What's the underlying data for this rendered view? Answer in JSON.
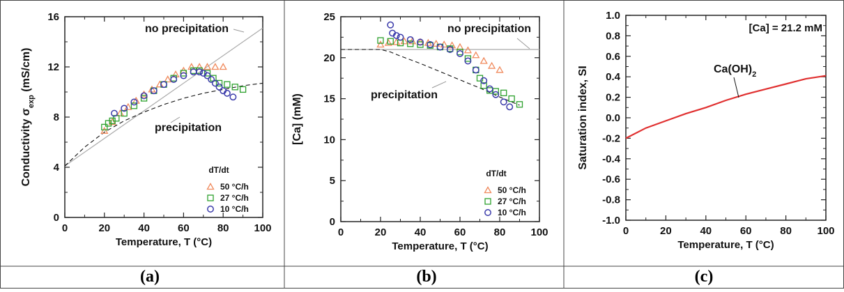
{
  "figure": {
    "captions": [
      "(a)",
      "(b)",
      "(c)"
    ]
  },
  "chart_data": [
    {
      "type": "scatter",
      "panel": "(a)",
      "xlabel": "Temperature, T (°C)",
      "ylabel": "Conductivity σexp (mS/cm)",
      "ylabel_main": "Conductivity σ",
      "ylabel_sub": "exp",
      "ylabel_unit": " (mS/cm)",
      "xlim": [
        0,
        100
      ],
      "ylim": [
        0,
        16
      ],
      "xticks": [
        0,
        20,
        40,
        60,
        80,
        100
      ],
      "yticks": [
        0,
        4,
        8,
        12,
        16
      ],
      "legend_title": "dT/dt",
      "legend_position": "bottom-right",
      "annotations": [
        "no precipitation",
        "precipitation"
      ],
      "reference_lines": [
        {
          "label": "no precipitation",
          "style": "solid-gray",
          "x": [
            0,
            100
          ],
          "y": [
            4.1,
            15.1
          ]
        },
        {
          "label": "precipitation",
          "style": "dashed",
          "x": [
            0,
            10,
            20,
            30,
            40,
            50,
            60,
            70,
            80,
            90,
            100
          ],
          "y": [
            4.1,
            5.6,
            6.8,
            7.7,
            8.4,
            9.0,
            9.5,
            9.9,
            10.2,
            10.5,
            10.7
          ]
        }
      ],
      "series": [
        {
          "name": "50 °C/h",
          "marker": "triangle",
          "color": "#f08a5d",
          "x": [
            20,
            24,
            28,
            32,
            36,
            40,
            44,
            48,
            52,
            56,
            60,
            64,
            68,
            72,
            76,
            80
          ],
          "y": [
            6.9,
            7.6,
            8.3,
            8.8,
            9.3,
            9.8,
            10.2,
            10.6,
            11.0,
            11.4,
            11.7,
            12.0,
            12.0,
            12.0,
            12.0,
            12.0
          ]
        },
        {
          "name": "27 °C/h",
          "marker": "square",
          "color": "#2ca02c",
          "x": [
            20,
            22,
            24,
            26,
            30,
            35,
            40,
            45,
            50,
            55,
            60,
            65,
            68,
            72,
            75,
            78,
            82,
            86,
            90
          ],
          "y": [
            7.2,
            7.5,
            7.7,
            7.9,
            8.3,
            8.9,
            9.5,
            10.1,
            10.6,
            11.1,
            11.5,
            11.7,
            11.7,
            11.5,
            11.1,
            10.7,
            10.6,
            10.4,
            10.2
          ]
        },
        {
          "name": "10 °C/h",
          "marker": "circle",
          "color": "#3a3aaa",
          "x": [
            25,
            30,
            35,
            40,
            45,
            50,
            55,
            60,
            65,
            68,
            70,
            72,
            74,
            76,
            78,
            80,
            82,
            85
          ],
          "y": [
            8.3,
            8.7,
            9.2,
            9.7,
            10.1,
            10.6,
            11.0,
            11.3,
            11.6,
            11.6,
            11.5,
            11.3,
            11.0,
            10.7,
            10.4,
            10.1,
            9.9,
            9.6
          ]
        }
      ]
    },
    {
      "type": "scatter",
      "panel": "(b)",
      "xlabel": "Temperature, T (°C)",
      "ylabel": "[Ca] (mM)",
      "xlim": [
        0,
        100
      ],
      "ylim": [
        0,
        25
      ],
      "xticks": [
        0,
        20,
        40,
        60,
        80,
        100
      ],
      "yticks": [
        0,
        5,
        10,
        15,
        20,
        25
      ],
      "legend_title": "dT/dt",
      "legend_position": "bottom-right",
      "annotations": [
        "no precipitation",
        "precipitation"
      ],
      "reference_lines": [
        {
          "label": "no precipitation",
          "style": "solid-gray",
          "x": [
            0,
            100
          ],
          "y": [
            21.0,
            21.0
          ]
        },
        {
          "label": "precipitation",
          "style": "dashed",
          "x": [
            0,
            20,
            25,
            30,
            40,
            50,
            60,
            70,
            80,
            90
          ],
          "y": [
            21.0,
            21.0,
            20.7,
            20.2,
            19.3,
            18.3,
            17.3,
            16.3,
            15.2,
            14.2
          ]
        }
      ],
      "series": [
        {
          "name": "50 °C/h",
          "marker": "triangle",
          "color": "#f08a5d",
          "x": [
            20,
            24,
            28,
            32,
            36,
            40,
            44,
            48,
            52,
            56,
            60,
            64,
            68,
            72,
            76,
            80
          ],
          "y": [
            21.6,
            21.8,
            21.9,
            22.0,
            22.0,
            21.9,
            21.8,
            21.7,
            21.6,
            21.5,
            21.3,
            20.9,
            20.3,
            19.6,
            19.0,
            18.5
          ]
        },
        {
          "name": "27 °C/h",
          "marker": "square",
          "color": "#2ca02c",
          "x": [
            20,
            25,
            30,
            35,
            40,
            45,
            50,
            55,
            60,
            64,
            68,
            70,
            72,
            75,
            78,
            82,
            86,
            90
          ],
          "y": [
            22.1,
            22.0,
            21.8,
            21.7,
            21.6,
            21.5,
            21.3,
            21.1,
            20.7,
            19.9,
            18.5,
            17.5,
            16.6,
            16.0,
            15.9,
            15.7,
            15.0,
            14.3
          ]
        },
        {
          "name": "10 °C/h",
          "marker": "circle",
          "color": "#3a3aaa",
          "x": [
            25,
            26,
            28,
            30,
            35,
            40,
            45,
            50,
            55,
            60,
            64,
            68,
            72,
            75,
            78,
            82,
            85
          ],
          "y": [
            24.0,
            23.0,
            22.7,
            22.5,
            22.2,
            21.9,
            21.6,
            21.3,
            21.0,
            20.5,
            19.6,
            18.5,
            17.2,
            16.2,
            15.5,
            14.6,
            14.0
          ]
        }
      ]
    },
    {
      "type": "line",
      "panel": "(c)",
      "xlabel": "Temperature, T (°C)",
      "ylabel": "Saturation index, SI",
      "xlim": [
        0,
        100
      ],
      "ylim": [
        -1.0,
        1.0
      ],
      "xticks": [
        0,
        20,
        40,
        60,
        80,
        100
      ],
      "yticks": [
        -1.0,
        -0.8,
        -0.6,
        -0.4,
        -0.2,
        0.0,
        0.2,
        0.4,
        0.6,
        0.8,
        1.0
      ],
      "ytick_labels": [
        "-1.0",
        "-0.8",
        "-0.6",
        "-0.4",
        "-0.2",
        "0.0",
        "0.2",
        "0.4",
        "0.6",
        "0.8",
        "1.0"
      ],
      "annotations": [
        "[Ca] = 21.2 mM"
      ],
      "series": [
        {
          "name": "Ca(OH)2",
          "label_main": "Ca(OH)",
          "label_sub": "2",
          "color": "#e03030",
          "x": [
            0,
            10,
            20,
            30,
            40,
            50,
            60,
            70,
            80,
            90,
            100
          ],
          "y": [
            -0.2,
            -0.1,
            -0.03,
            0.04,
            0.1,
            0.17,
            0.23,
            0.28,
            0.33,
            0.38,
            0.41
          ]
        }
      ]
    }
  ]
}
